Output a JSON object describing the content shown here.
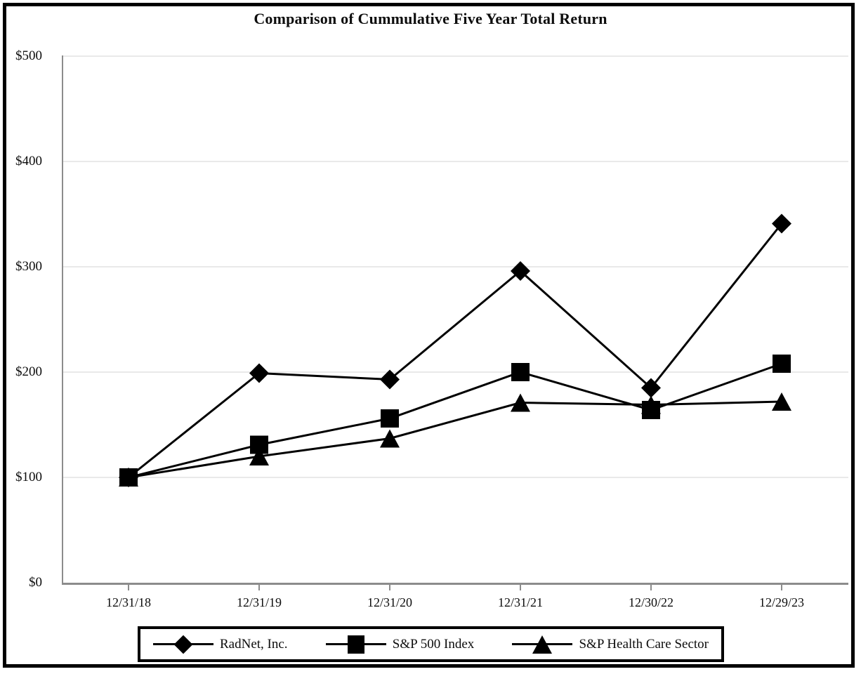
{
  "chart_data": {
    "type": "line",
    "title": "Comparison of Cummulative Five Year Total Return",
    "xlabel": "",
    "ylabel": "",
    "categories": [
      "12/31/18",
      "12/31/19",
      "12/31/20",
      "12/31/21",
      "12/30/22",
      "12/29/23"
    ],
    "y_ticks": [
      0,
      100,
      200,
      300,
      400,
      500
    ],
    "y_tick_labels": [
      "$0",
      "$100",
      "$200",
      "$300",
      "$400",
      "$500"
    ],
    "ylim": [
      0,
      500
    ],
    "grid": "horizontal-light",
    "legend_position": "bottom-center",
    "series": [
      {
        "name": "RadNet, Inc.",
        "marker": "diamond",
        "color": "#000000",
        "values": [
          100,
          199,
          193,
          296,
          185,
          341
        ]
      },
      {
        "name": "S&P 500 Index",
        "marker": "square",
        "color": "#000000",
        "values": [
          100,
          131,
          156,
          200,
          164,
          208
        ]
      },
      {
        "name": "S&P Health Care Sector",
        "marker": "triangle",
        "color": "#000000",
        "values": [
          100,
          120,
          137,
          171,
          169,
          172
        ]
      }
    ]
  },
  "colors": {
    "background": "#ffffff",
    "frame": "#000000",
    "line": "#000000",
    "axis": "#8c8c8c",
    "gridline": "#e9e9e9",
    "text": "#0d0d0d"
  }
}
